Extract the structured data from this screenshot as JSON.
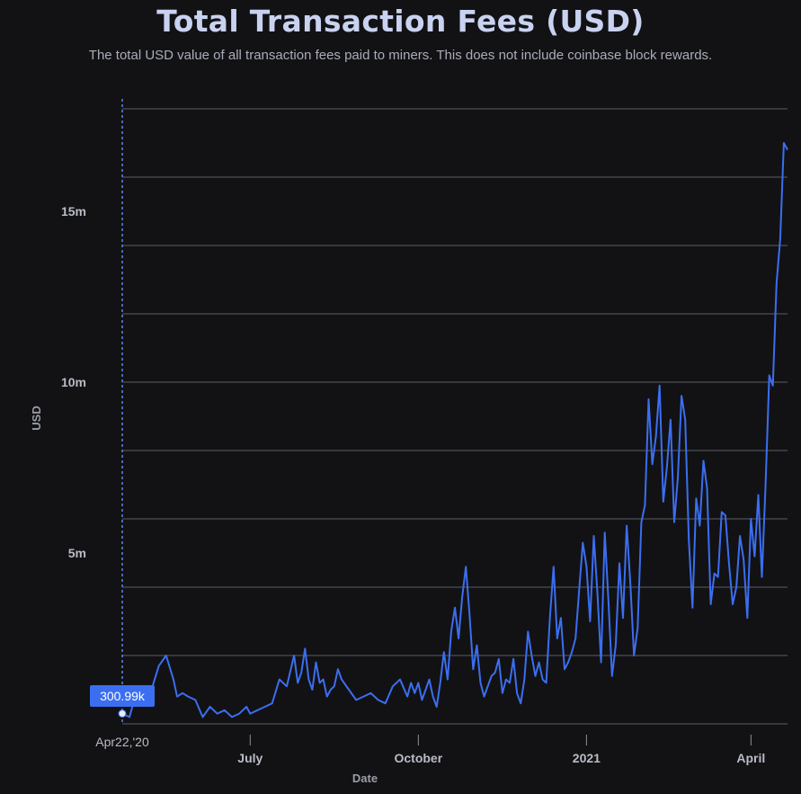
{
  "chart_data": {
    "type": "line",
    "title": "Total Transaction Fees (USD)",
    "subtitle": "The total USD value of all transaction fees paid to miners. This does not include coinbase block rewards.",
    "xlabel": "Date",
    "ylabel": "USD",
    "ylim": [
      0,
      18000000
    ],
    "y_ticks": [
      {
        "value": 5000000,
        "label": "5m"
      },
      {
        "value": 10000000,
        "label": "10m"
      },
      {
        "value": 15000000,
        "label": "15m"
      }
    ],
    "gridlines": [
      2000000,
      4000000,
      6000000,
      8000000,
      10000000,
      12000000,
      14000000,
      16000000,
      18000000
    ],
    "x_ticks": [
      {
        "day": 70,
        "label": "July"
      },
      {
        "day": 162,
        "label": "October"
      },
      {
        "day": 254,
        "label": "2021"
      },
      {
        "day": 344,
        "label": "April"
      }
    ],
    "x_start_label": "Apr22,'20",
    "x_range": [
      0,
      364
    ],
    "tooltip": {
      "day": 0,
      "value": 300990,
      "label": "300.99k"
    },
    "color": "#3b6ef0",
    "series": [
      {
        "name": "Total Transaction Fees",
        "x": [
          0,
          4,
          8,
          12,
          16,
          20,
          24,
          28,
          30,
          33,
          36,
          40,
          44,
          48,
          52,
          56,
          60,
          64,
          68,
          70,
          74,
          78,
          82,
          86,
          90,
          94,
          96,
          98,
          100,
          102,
          104,
          106,
          108,
          110,
          112,
          114,
          116,
          118,
          120,
          124,
          128,
          132,
          136,
          140,
          144,
          148,
          152,
          156,
          158,
          160,
          162,
          164,
          166,
          168,
          170,
          172,
          174,
          176,
          178,
          180,
          182,
          184,
          186,
          188,
          190,
          192,
          194,
          196,
          198,
          200,
          202,
          204,
          206,
          208,
          210,
          212,
          214,
          216,
          218,
          220,
          222,
          224,
          226,
          228,
          230,
          232,
          234,
          236,
          238,
          240,
          242,
          244,
          246,
          248,
          250,
          252,
          254,
          256,
          258,
          260,
          262,
          264,
          266,
          268,
          270,
          272,
          274,
          276,
          278,
          280,
          282,
          284,
          286,
          288,
          290,
          292,
          294,
          296,
          298,
          300,
          302,
          304,
          306,
          308,
          310,
          312,
          314,
          316,
          318,
          320,
          322,
          324,
          326,
          328,
          330,
          332,
          334,
          336,
          338,
          340,
          342,
          344,
          346,
          348,
          350,
          352,
          354,
          356,
          358,
          360,
          362,
          364
        ],
        "values": [
          300990,
          200000,
          1000000,
          900000,
          1000000,
          1700000,
          2000000,
          1300000,
          800000,
          900000,
          800000,
          700000,
          200000,
          500000,
          300000,
          400000,
          200000,
          300000,
          500000,
          300000,
          400000,
          500000,
          600000,
          1300000,
          1100000,
          2000000,
          1200000,
          1500000,
          2200000,
          1300000,
          1000000,
          1800000,
          1200000,
          1300000,
          800000,
          1000000,
          1100000,
          1600000,
          1300000,
          1000000,
          700000,
          800000,
          900000,
          700000,
          600000,
          1100000,
          1300000,
          800000,
          1200000,
          900000,
          1200000,
          700000,
          1000000,
          1300000,
          800000,
          500000,
          1200000,
          2100000,
          1300000,
          2700000,
          3400000,
          2500000,
          3700000,
          4600000,
          3200000,
          1600000,
          2300000,
          1200000,
          800000,
          1100000,
          1400000,
          1500000,
          1900000,
          900000,
          1300000,
          1200000,
          1900000,
          900000,
          600000,
          1300000,
          2700000,
          2000000,
          1400000,
          1800000,
          1300000,
          1200000,
          3100000,
          4600000,
          2500000,
          3100000,
          1600000,
          1800000,
          2100000,
          2500000,
          3900000,
          5300000,
          4600000,
          3000000,
          5500000,
          3800000,
          1800000,
          5600000,
          3600000,
          1400000,
          2300000,
          4700000,
          3100000,
          5800000,
          4100000,
          2000000,
          2800000,
          5900000,
          6400000,
          9500000,
          7600000,
          8400000,
          9900000,
          6500000,
          7500000,
          8900000,
          5900000,
          7200000,
          9600000,
          8900000,
          5400000,
          3400000,
          6600000,
          5800000,
          7700000,
          6900000,
          3500000,
          4400000,
          4300000,
          6200000,
          6100000,
          4700000,
          3500000,
          4000000,
          5500000,
          4800000,
          3100000,
          6000000,
          4900000,
          6700000,
          4300000,
          7000000,
          10200000,
          9900000,
          12900000,
          14200000,
          17000000,
          16800000
        ]
      }
    ]
  }
}
